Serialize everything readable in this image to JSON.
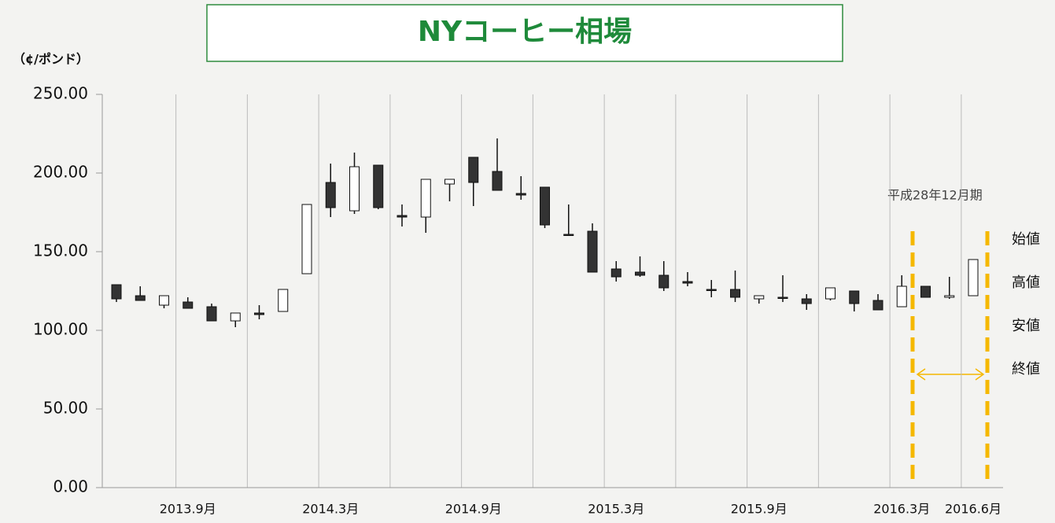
{
  "chart_data": {
    "type": "candlestick",
    "title": "NYコーヒー相場",
    "y_label": "（¢/ポンド）",
    "annotation": "平成28年12月期",
    "legend_labels": [
      "始値",
      "高値",
      "安値",
      "終値"
    ],
    "categories": [
      null,
      null,
      null,
      "2013.9月",
      null,
      null,
      null,
      null,
      null,
      "2014.3月",
      null,
      null,
      null,
      null,
      null,
      "2014.9月",
      null,
      null,
      null,
      null,
      null,
      "2015.3月",
      null,
      null,
      null,
      null,
      null,
      "2015.9月",
      null,
      null,
      null,
      null,
      null,
      "2016.3月",
      null,
      null,
      "2016.6月"
    ],
    "open": [
      129,
      122,
      116,
      118,
      115,
      106,
      111,
      112,
      136,
      194,
      176,
      205,
      173,
      172,
      193,
      210,
      201,
      187,
      191,
      161,
      163,
      139,
      137,
      135,
      131,
      126,
      126,
      120,
      121,
      120,
      120,
      125,
      119,
      115,
      128,
      121,
      122
    ],
    "high": [
      129,
      128,
      122,
      121,
      117,
      111,
      116,
      126,
      180,
      206,
      213,
      205,
      180,
      196,
      196,
      210,
      222,
      198,
      191,
      180,
      168,
      144,
      147,
      144,
      137,
      132,
      138,
      122,
      135,
      123,
      127,
      125,
      123,
      135,
      128,
      134,
      145
    ],
    "low": [
      118,
      119,
      114,
      114,
      106,
      102,
      107,
      112,
      136,
      172,
      174,
      177,
      166,
      162,
      182,
      179,
      189,
      183,
      165,
      160,
      137,
      131,
      134,
      125,
      128,
      121,
      118,
      117,
      118,
      113,
      119,
      112,
      113,
      115,
      121,
      120,
      122
    ],
    "close": [
      120,
      119,
      122,
      114,
      106,
      111,
      110,
      126,
      180,
      178,
      204,
      178,
      172,
      196,
      196,
      194,
      189,
      186,
      167,
      161,
      137,
      134,
      135,
      127,
      130,
      126,
      121,
      122,
      121,
      117,
      127,
      117,
      113,
      128,
      121,
      122,
      145
    ],
    "up_color": "#ffffff",
    "down_color": "#333333",
    "ylim": [
      0,
      250
    ],
    "yticks": [
      {
        "value": 0,
        "label": "0.00"
      },
      {
        "value": 50,
        "label": "50.00"
      },
      {
        "value": 100,
        "label": "100.00"
      },
      {
        "value": 150,
        "label": "150.00"
      },
      {
        "value": 200,
        "label": "200.00"
      },
      {
        "value": 250,
        "label": "250.00"
      }
    ]
  }
}
